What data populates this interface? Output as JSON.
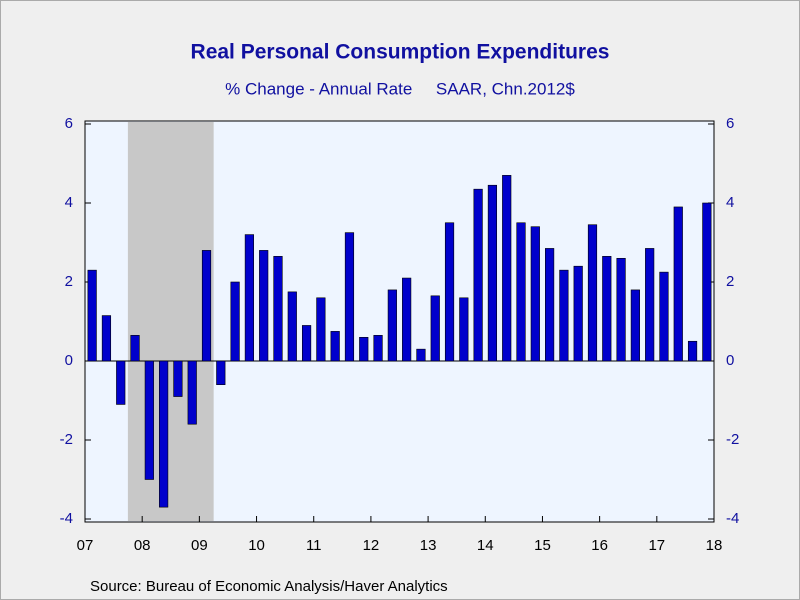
{
  "chart_data": {
    "type": "bar",
    "title": "Real Personal Consumption Expenditures",
    "subtitle": "% Change - Annual Rate     SAAR, Chn.2012$",
    "source": "Source:  Bureau of Economic Analysis/Haver Analytics",
    "color": "#0000cc",
    "x": [
      2007,
      2007.25,
      2007.5,
      2007.75,
      2008,
      2008.25,
      2008.5,
      2008.75,
      2009,
      2009.25,
      2009.5,
      2009.75,
      2010,
      2010.25,
      2010.5,
      2010.75,
      2011,
      2011.25,
      2011.5,
      2011.75,
      2012,
      2012.25,
      2012.5,
      2012.75,
      2013,
      2013.25,
      2013.5,
      2013.75,
      2014,
      2014.25,
      2014.5,
      2014.75,
      2015,
      2015.25,
      2015.5,
      2015.75,
      2016,
      2016.25,
      2016.5,
      2016.75,
      2017,
      2017.25,
      2017.5,
      2017.75
    ],
    "values": [
      2.3,
      1.15,
      -1.1,
      0.65,
      -3.0,
      -3.7,
      -0.9,
      -1.6,
      2.8,
      -0.6,
      2.0,
      3.2,
      2.8,
      2.65,
      1.75,
      0.9,
      1.6,
      0.75,
      3.25,
      0.6,
      0.65,
      1.8,
      2.1,
      0.3,
      1.65,
      3.5,
      1.6,
      4.35,
      4.45,
      4.7,
      3.5,
      3.4,
      2.85,
      2.3,
      2.4,
      3.45,
      2.65,
      2.6,
      1.8,
      2.85,
      2.25,
      3.9,
      0.5,
      4.0
    ],
    "bar_width": 0.25,
    "recession": [
      [
        2007.75,
        2009.25
      ]
    ],
    "xlim": [
      2007,
      2018
    ],
    "xticks": [
      {
        "value": 2007,
        "label": "07"
      },
      {
        "value": 2008,
        "label": "08"
      },
      {
        "value": 2009,
        "label": "09"
      },
      {
        "value": 2010,
        "label": "10"
      },
      {
        "value": 2011,
        "label": "11"
      },
      {
        "value": 2012,
        "label": "12"
      },
      {
        "value": 2013,
        "label": "13"
      },
      {
        "value": 2014,
        "label": "14"
      },
      {
        "value": 2015,
        "label": "15"
      },
      {
        "value": 2016,
        "label": "16"
      },
      {
        "value": 2017,
        "label": "17"
      },
      {
        "value": 2018,
        "label": "18"
      }
    ],
    "ylim": [
      -4,
      6
    ],
    "yticks": [
      -4,
      -2,
      0,
      2,
      4,
      6
    ],
    "y2lim": [
      -4,
      6
    ],
    "y2ticks": [
      -4,
      -2,
      0,
      2,
      4,
      6
    ],
    "grid": false
  }
}
